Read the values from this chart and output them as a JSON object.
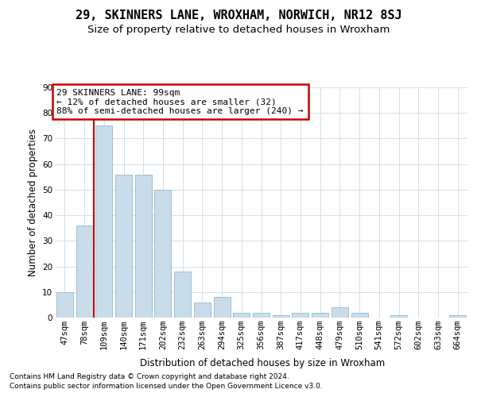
{
  "title": "29, SKINNERS LANE, WROXHAM, NORWICH, NR12 8SJ",
  "subtitle": "Size of property relative to detached houses in Wroxham",
  "xlabel": "Distribution of detached houses by size in Wroxham",
  "ylabel": "Number of detached properties",
  "footnote1": "Contains HM Land Registry data © Crown copyright and database right 2024.",
  "footnote2": "Contains public sector information licensed under the Open Government Licence v3.0.",
  "bar_labels": [
    "47sqm",
    "78sqm",
    "109sqm",
    "140sqm",
    "171sqm",
    "202sqm",
    "232sqm",
    "263sqm",
    "294sqm",
    "325sqm",
    "356sqm",
    "387sqm",
    "417sqm",
    "448sqm",
    "479sqm",
    "510sqm",
    "541sqm",
    "572sqm",
    "602sqm",
    "633sqm",
    "664sqm"
  ],
  "bar_values": [
    10,
    36,
    75,
    56,
    56,
    50,
    18,
    6,
    8,
    2,
    2,
    1,
    2,
    2,
    4,
    2,
    0,
    1,
    0,
    0,
    1
  ],
  "bar_color": "#c9dcea",
  "bar_edge_color": "#93b8d0",
  "bg_color": "#ffffff",
  "plot_bg_color": "#ffffff",
  "grid_color": "#d0e0ec",
  "red_line_color": "#cc0000",
  "red_line_x": 1.5,
  "annotation_line1": "29 SKINNERS LANE: 99sqm",
  "annotation_line2": "← 12% of detached houses are smaller (32)",
  "annotation_line3": "88% of semi-detached houses are larger (240) →",
  "annotation_box_edge_color": "#cc0000",
  "annotation_box_face_color": "#ffffff",
  "ylim_max": 90,
  "yticks": [
    0,
    10,
    20,
    30,
    40,
    50,
    60,
    70,
    80,
    90
  ],
  "title_fontsize": 11,
  "subtitle_fontsize": 9.5,
  "ylabel_fontsize": 8.5,
  "xlabel_fontsize": 8.5,
  "tick_fontsize": 7.5,
  "annot_fontsize": 8,
  "footnote_fontsize": 6.5
}
